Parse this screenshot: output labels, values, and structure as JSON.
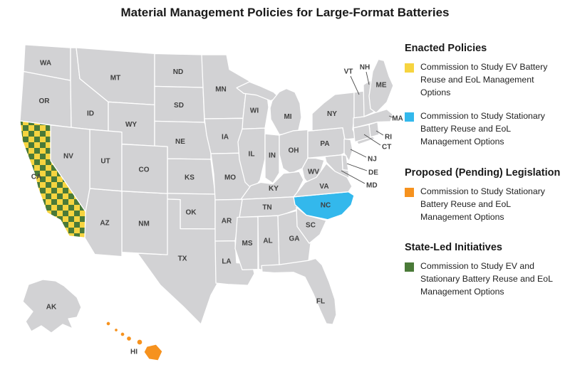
{
  "title": "Material Management Policies for Large-Format Batteries",
  "colors": {
    "state_default": "#d2d2d4",
    "state_border": "#ffffff",
    "enacted_ev_yellow": "#f6d440",
    "enacted_stationary_blue": "#33b8ec",
    "proposed_orange": "#f6921e",
    "state_led_green": "#4a7a38",
    "label_text": "#3f3f3f",
    "leader_line": "#4a4a4a"
  },
  "legend": {
    "sections": [
      {
        "header": "Enacted Policies",
        "items": [
          {
            "swatch": "enacted_ev_yellow",
            "label": "Commission to Study EV Battery Reuse and EoL Management Options"
          },
          {
            "swatch": "enacted_stationary_blue",
            "label": "Commission to Study Stationary Battery Reuse and EoL Management Options"
          }
        ]
      },
      {
        "header": "Proposed (Pending) Legislation",
        "items": [
          {
            "swatch": "proposed_orange",
            "label": "Commission to Study Stationary Battery Reuse and EoL Management Options"
          }
        ]
      },
      {
        "header": "State-Led Initiatives",
        "items": [
          {
            "swatch": "state_led_green",
            "label": "Commission to Study EV and Stationary Battery Reuse and EoL Management Options"
          }
        ]
      }
    ]
  },
  "map": {
    "states": [
      {
        "id": "WA",
        "label": "WA",
        "fill": "default"
      },
      {
        "id": "OR",
        "label": "OR",
        "fill": "default"
      },
      {
        "id": "ID",
        "label": "ID",
        "fill": "default"
      },
      {
        "id": "MT",
        "label": "MT",
        "fill": "default"
      },
      {
        "id": "WY",
        "label": "WY",
        "fill": "default"
      },
      {
        "id": "ND",
        "label": "ND",
        "fill": "default"
      },
      {
        "id": "SD",
        "label": "SD",
        "fill": "default"
      },
      {
        "id": "NE",
        "label": "NE",
        "fill": "default"
      },
      {
        "id": "KS",
        "label": "KS",
        "fill": "default"
      },
      {
        "id": "OK",
        "label": "OK",
        "fill": "default"
      },
      {
        "id": "TX",
        "label": "TX",
        "fill": "default"
      },
      {
        "id": "NM",
        "label": "NM",
        "fill": "default"
      },
      {
        "id": "AZ",
        "label": "AZ",
        "fill": "default"
      },
      {
        "id": "UT",
        "label": "UT",
        "fill": "default"
      },
      {
        "id": "CO",
        "label": "CO",
        "fill": "default"
      },
      {
        "id": "NV",
        "label": "NV",
        "fill": "default"
      },
      {
        "id": "CA",
        "label": "CA",
        "fill": "checker_yellow_green"
      },
      {
        "id": "MN",
        "label": "MN",
        "fill": "default"
      },
      {
        "id": "IA",
        "label": "IA",
        "fill": "default"
      },
      {
        "id": "MO",
        "label": "MO",
        "fill": "default"
      },
      {
        "id": "WI",
        "label": "WI",
        "fill": "default"
      },
      {
        "id": "MI",
        "label": "MI",
        "fill": "default"
      },
      {
        "id": "IL",
        "label": "IL",
        "fill": "default"
      },
      {
        "id": "IN",
        "label": "IN",
        "fill": "default"
      },
      {
        "id": "OH",
        "label": "OH",
        "fill": "default"
      },
      {
        "id": "KY",
        "label": "KY",
        "fill": "default"
      },
      {
        "id": "TN",
        "label": "TN",
        "fill": "default"
      },
      {
        "id": "AR",
        "label": "AR",
        "fill": "default"
      },
      {
        "id": "LA",
        "label": "LA",
        "fill": "default"
      },
      {
        "id": "MS",
        "label": "MS",
        "fill": "default"
      },
      {
        "id": "AL",
        "label": "AL",
        "fill": "default"
      },
      {
        "id": "GA",
        "label": "GA",
        "fill": "default"
      },
      {
        "id": "FL",
        "label": "FL",
        "fill": "default"
      },
      {
        "id": "SC",
        "label": "SC",
        "fill": "default"
      },
      {
        "id": "NC",
        "label": "NC",
        "fill": "enacted_stationary_blue",
        "label_color": "#ffffff"
      },
      {
        "id": "WV",
        "label": "WV",
        "fill": "default"
      },
      {
        "id": "VA",
        "label": "VA",
        "fill": "default"
      },
      {
        "id": "PA",
        "label": "PA",
        "fill": "default"
      },
      {
        "id": "NY",
        "label": "NY",
        "fill": "default"
      },
      {
        "id": "VT",
        "label": "VT",
        "fill": "default"
      },
      {
        "id": "NH",
        "label": "NH",
        "fill": "default"
      },
      {
        "id": "ME",
        "label": "ME",
        "fill": "default"
      },
      {
        "id": "MA",
        "label": "MA",
        "fill": "default"
      },
      {
        "id": "RI",
        "label": "RI",
        "fill": "default"
      },
      {
        "id": "CT",
        "label": "CT",
        "fill": "default"
      },
      {
        "id": "NJ",
        "label": "NJ",
        "fill": "default"
      },
      {
        "id": "DE",
        "label": "DE",
        "fill": "default"
      },
      {
        "id": "MD",
        "label": "MD",
        "fill": "default"
      },
      {
        "id": "AK",
        "label": "AK",
        "fill": "default"
      },
      {
        "id": "HI",
        "label": "HI",
        "fill": "proposed_orange",
        "label_color": "#3f3f3f"
      }
    ]
  }
}
